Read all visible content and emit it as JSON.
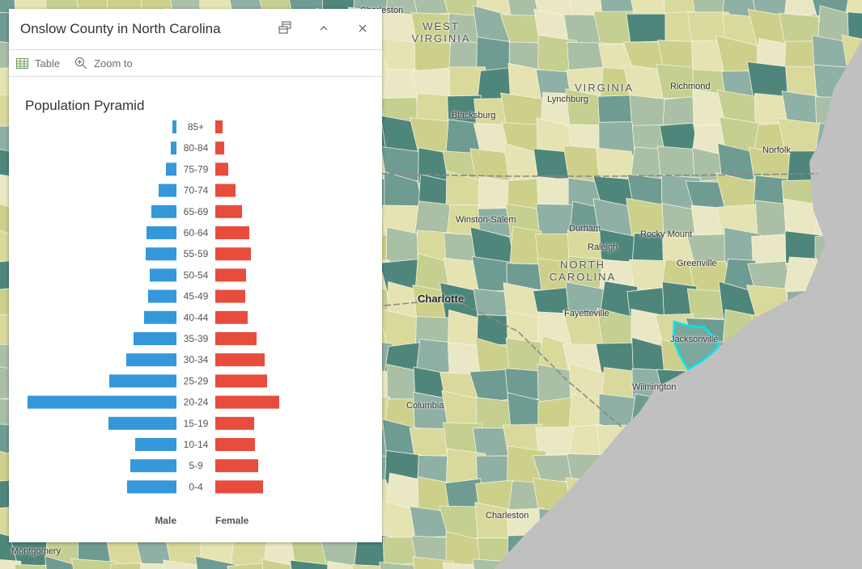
{
  "map": {
    "colors": [
      "#d9d99c",
      "#e5e3b2",
      "#cdd08a",
      "#a9bfa6",
      "#8fb0a4",
      "#6f9c92",
      "#4f867b",
      "#eae8c4",
      "#c4cf90"
    ],
    "ocean_color": "#c0c0c0",
    "highlight_color": "#00e5f0",
    "labels": [
      {
        "text": "Charleston",
        "kind": "city"
      },
      {
        "text": "WEST VIRGINIA",
        "kind": "state"
      },
      {
        "text": "VIRGINIA",
        "kind": "state"
      },
      {
        "text": "Richmond",
        "kind": "city"
      },
      {
        "text": "Lynchburg",
        "kind": "city"
      },
      {
        "text": "Blacksburg",
        "kind": "city"
      },
      {
        "text": "Norfolk",
        "kind": "city"
      },
      {
        "text": "Winston-Salem",
        "kind": "city"
      },
      {
        "text": "Durham",
        "kind": "city"
      },
      {
        "text": "Raleigh",
        "kind": "city"
      },
      {
        "text": "Rocky Mount",
        "kind": "city"
      },
      {
        "text": "Greenville",
        "kind": "city"
      },
      {
        "text": "NORTH CAROLINA",
        "kind": "state"
      },
      {
        "text": "Charlotte",
        "kind": "big"
      },
      {
        "text": "Fayetteville",
        "kind": "city"
      },
      {
        "text": "Jacksonville",
        "kind": "city"
      },
      {
        "text": "Wilmington",
        "kind": "city"
      },
      {
        "text": "Columbia",
        "kind": "city"
      },
      {
        "text": "Charleston",
        "kind": "city"
      },
      {
        "text": "Montgomery",
        "kind": "city"
      }
    ]
  },
  "popup": {
    "title": "Onslow County in North Carolina",
    "dock_icon": "dock-icon",
    "collapse_icon": "chevron-up-icon",
    "close_icon": "close-icon",
    "actions": [
      {
        "label": "Table",
        "icon": "table-icon"
      },
      {
        "label": "Zoom to",
        "icon": "zoom-in-icon"
      }
    ]
  },
  "chart_data": {
    "type": "bar",
    "title": "Population Pyramid",
    "orientation": "horizontal-pyramid",
    "categories": [
      "85+",
      "80-84",
      "75-79",
      "70-74",
      "65-69",
      "60-64",
      "55-59",
      "50-54",
      "45-49",
      "40-44",
      "35-39",
      "30-34",
      "25-29",
      "20-24",
      "15-19",
      "10-14",
      "5-9",
      "0-4"
    ],
    "series": [
      {
        "name": "Male",
        "color": "#3498db",
        "values": [
          5,
          7,
          13,
          22,
          31,
          37,
          38,
          33,
          35,
          40,
          53,
          62,
          83,
          184,
          84,
          51,
          57,
          61
        ]
      },
      {
        "name": "Female",
        "color": "#e74c3c",
        "values": [
          9,
          11,
          16,
          25,
          33,
          42,
          44,
          38,
          37,
          40,
          51,
          61,
          64,
          79,
          48,
          49,
          53,
          59
        ]
      }
    ]
  }
}
